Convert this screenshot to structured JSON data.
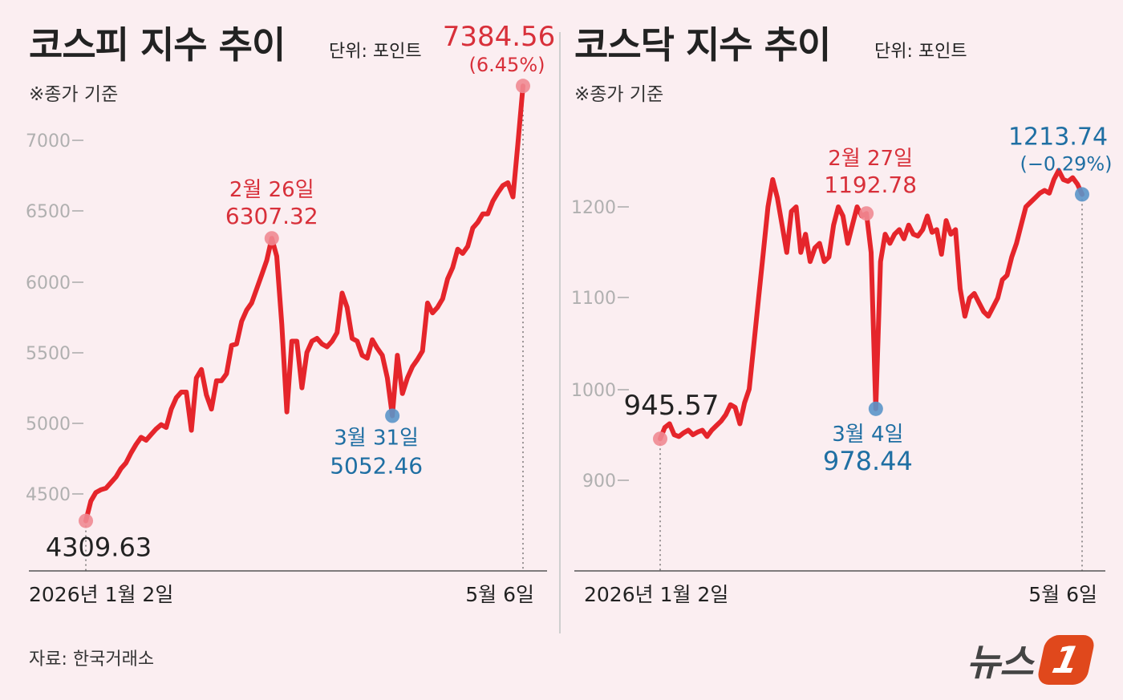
{
  "kospi": {
    "title": "코스피 지수 추이",
    "unit": "단위: 포인트",
    "note": "※종가 기준"
  },
  "kosdaq": {
    "title": "코스닥 지수 추이",
    "unit": "단위: 포인트",
    "note": "※종가 기준"
  },
  "source": "자료: 한국거래소",
  "logo": {
    "text": "뉴스",
    "mark": "1"
  },
  "colors": {
    "line": "#e5252b",
    "red_label": "#d8303a",
    "blue_label": "#1f6fa3",
    "background": "#fbeef1"
  },
  "chart_data": [
    {
      "type": "line",
      "title": "코스피 지수 추이",
      "ylim": [
        4300,
        7450
      ],
      "yticks": [
        4500,
        5000,
        5500,
        6000,
        6500,
        7000
      ],
      "ytick_labels": [
        "4500",
        "5000",
        "5500",
        "6000",
        "6500",
        "7000"
      ],
      "x_start_label": "2026년 1월 2일",
      "x_end_label": "5월 6일",
      "grid": false,
      "series": [
        {
          "values": [
            4309.63,
            4450,
            4510,
            4530,
            4540,
            4580,
            4620,
            4680,
            4720,
            4790,
            4850,
            4900,
            4880,
            4920,
            4960,
            4990,
            4970,
            5100,
            5180,
            5220,
            5220,
            4950,
            5320,
            5380,
            5200,
            5100,
            5300,
            5300,
            5350,
            5550,
            5560,
            5720,
            5800,
            5850,
            5950,
            6050,
            6150,
            6307.32,
            6180,
            5700,
            5080,
            5580,
            5580,
            5250,
            5500,
            5580,
            5600,
            5560,
            5540,
            5580,
            5640,
            5920,
            5820,
            5600,
            5580,
            5480,
            5460,
            5590,
            5530,
            5480,
            5320,
            5052.46,
            5480,
            5210,
            5320,
            5400,
            5450,
            5510,
            5850,
            5780,
            5820,
            5880,
            6020,
            6100,
            6230,
            6200,
            6250,
            6380,
            6420,
            6480,
            6480,
            6570,
            6630,
            6680,
            6700,
            6600,
            6980,
            7384.56
          ],
          "color": "#e5252b"
        }
      ],
      "annotations": [
        {
          "index": 0,
          "value": 4309.63,
          "label": "4309.63",
          "color": "#222222"
        },
        {
          "index": 37,
          "value": 6307.32,
          "date": "2월 26일",
          "label": "6307.32",
          "color": "#d8303a"
        },
        {
          "index": 61,
          "value": 5052.46,
          "date": "3월 31일",
          "label": "5052.46",
          "color": "#1f6fa3"
        },
        {
          "index": 87,
          "value": 7384.56,
          "label": "7384.56",
          "change": "(6.45%)",
          "color": "#d8303a"
        }
      ]
    },
    {
      "type": "line",
      "title": "코스닥 지수 추이",
      "ylim": [
        830,
        1240
      ],
      "yticks": [
        900,
        1000,
        1100,
        1200
      ],
      "ytick_labels": [
        "900",
        "1000",
        "1100",
        "1200"
      ],
      "x_start_label": "2026년 1월 2일",
      "x_end_label": "5월 6일",
      "grid": false,
      "series": [
        {
          "values": [
            945.57,
            958,
            962,
            950,
            948,
            952,
            955,
            950,
            953,
            955,
            948,
            955,
            960,
            965,
            972,
            983,
            980,
            962,
            985,
            1000,
            1050,
            1100,
            1150,
            1200,
            1230,
            1210,
            1180,
            1150,
            1195,
            1200,
            1150,
            1170,
            1140,
            1155,
            1160,
            1140,
            1145,
            1180,
            1200,
            1190,
            1160,
            1180,
            1200,
            1190,
            1192.78,
            1150,
            978.44,
            1140,
            1170,
            1160,
            1170,
            1175,
            1165,
            1180,
            1170,
            1168,
            1175,
            1190,
            1172,
            1175,
            1148,
            1185,
            1170,
            1175,
            1110,
            1080,
            1100,
            1105,
            1095,
            1085,
            1080,
            1090,
            1100,
            1120,
            1125,
            1145,
            1160,
            1180,
            1200,
            1205,
            1210,
            1215,
            1218,
            1215,
            1230,
            1240,
            1230,
            1228,
            1232,
            1225,
            1213.74
          ],
          "color": "#e5252b"
        }
      ],
      "annotations": [
        {
          "index": 0,
          "value": 945.57,
          "label": "945.57",
          "color": "#222222"
        },
        {
          "index": 44,
          "value": 1192.78,
          "date": "2월 27일",
          "label": "1192.78",
          "color": "#d8303a"
        },
        {
          "index": 46,
          "value": 978.44,
          "date": "3월 4일",
          "label": "978.44",
          "color": "#1f6fa3"
        },
        {
          "index": 90,
          "value": 1213.74,
          "label": "1213.74",
          "change": "(−0.29%)",
          "color": "#1f6fa3"
        }
      ]
    }
  ]
}
